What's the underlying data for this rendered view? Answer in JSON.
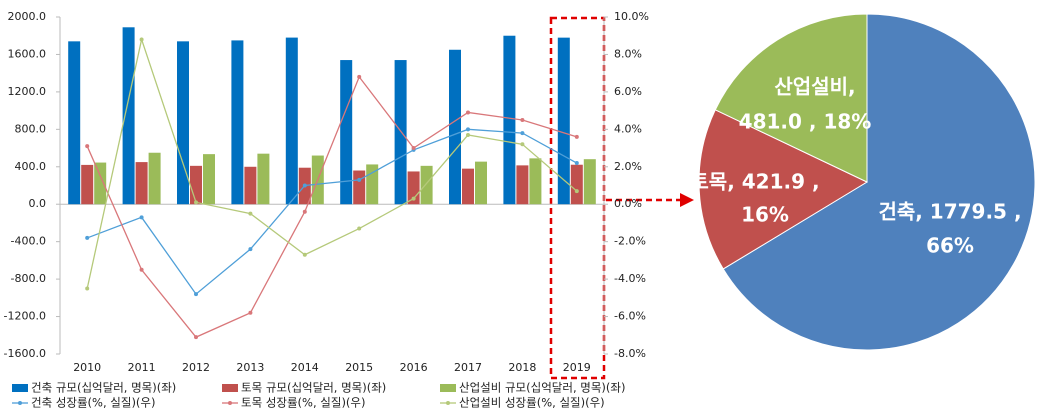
{
  "chart_data": [
    {
      "type": "combo",
      "categories": [
        "2010",
        "2011",
        "2012",
        "2013",
        "2014",
        "2015",
        "2016",
        "2017",
        "2018",
        "2019"
      ],
      "series": [
        {
          "name": "건축 규모(십억달러, 명목)(좌)",
          "type": "bar",
          "color": "#0070c0",
          "values": [
            1740,
            1890,
            1740,
            1750,
            1780,
            1540,
            1540,
            1650,
            1800,
            1779.5
          ]
        },
        {
          "name": "토목 규모(십억달러, 명목)(좌)",
          "type": "bar",
          "color": "#c0504d",
          "values": [
            420,
            450,
            410,
            400,
            390,
            360,
            350,
            380,
            415,
            421.9
          ]
        },
        {
          "name": "산업설비 규모(십억달러, 명목)(좌)",
          "type": "bar",
          "color": "#9bbb59",
          "values": [
            445,
            550,
            535,
            540,
            520,
            425,
            410,
            455,
            490,
            481.0
          ]
        },
        {
          "name": "건축 성장률(%, 실질)(우)",
          "type": "line",
          "axis": "y2",
          "color": "#4f9fd8",
          "values": [
            -1.8,
            -0.7,
            -4.8,
            -2.4,
            1.0,
            1.3,
            2.9,
            4.0,
            3.8,
            2.2
          ]
        },
        {
          "name": "토목 성장률(%, 실질)(우)",
          "type": "line",
          "axis": "y2",
          "color": "#d9777a",
          "values": [
            3.1,
            -3.5,
            -7.1,
            -5.8,
            -0.4,
            6.8,
            3.0,
            4.9,
            4.5,
            3.6
          ]
        },
        {
          "name": "산업설비 성장률(%, 실질)(우)",
          "type": "line",
          "axis": "y2",
          "color": "#b5c97a",
          "values": [
            -4.5,
            8.8,
            0.1,
            -0.5,
            -2.7,
            -1.3,
            0.3,
            3.7,
            3.2,
            0.7
          ]
        }
      ],
      "ylim": [
        -1600,
        2000
      ],
      "yticks": [
        {
          "value": 2000,
          "label": "2000.0"
        },
        {
          "value": 1600,
          "label": "1600.0"
        },
        {
          "value": 1200,
          "label": "1200.0"
        },
        {
          "value": 800,
          "label": "800.0"
        },
        {
          "value": 400,
          "label": "400.0"
        },
        {
          "value": 0,
          "label": "0.0"
        },
        {
          "value": -400,
          "label": "-400.0"
        },
        {
          "value": -800,
          "label": "-800.0"
        },
        {
          "value": -1200,
          "label": "-1200.0"
        },
        {
          "value": -1600,
          "label": "-1600.0"
        }
      ],
      "y2lim": [
        -8,
        10
      ],
      "y2ticks": [
        {
          "value": 10,
          "label": "10.0%"
        },
        {
          "value": 8,
          "label": "8.0%"
        },
        {
          "value": 6,
          "label": "6.0%"
        },
        {
          "value": 4,
          "label": "4.0%"
        },
        {
          "value": 2,
          "label": "2.0%"
        },
        {
          "value": 0,
          "label": "0.0%"
        },
        {
          "value": -2,
          "label": "-2.0%"
        },
        {
          "value": -4,
          "label": "-4.0%"
        },
        {
          "value": -6,
          "label": "-6.0%"
        },
        {
          "value": -8,
          "label": "-8.0%"
        }
      ],
      "legend": "bottom"
    },
    {
      "type": "pie",
      "categories": [
        "건축",
        "토목",
        "산업설비"
      ],
      "values": [
        1779.5,
        421.9,
        481.0
      ],
      "value_labels": [
        [
          "건축, 1779.5 ,",
          "66%"
        ],
        [
          "토목, 421.9 ,",
          "16%"
        ],
        [
          "산업설비,",
          "481.0 , 18%"
        ]
      ],
      "colors": [
        "#4f81bd",
        "#c0504d",
        "#9bbb59"
      ]
    }
  ]
}
